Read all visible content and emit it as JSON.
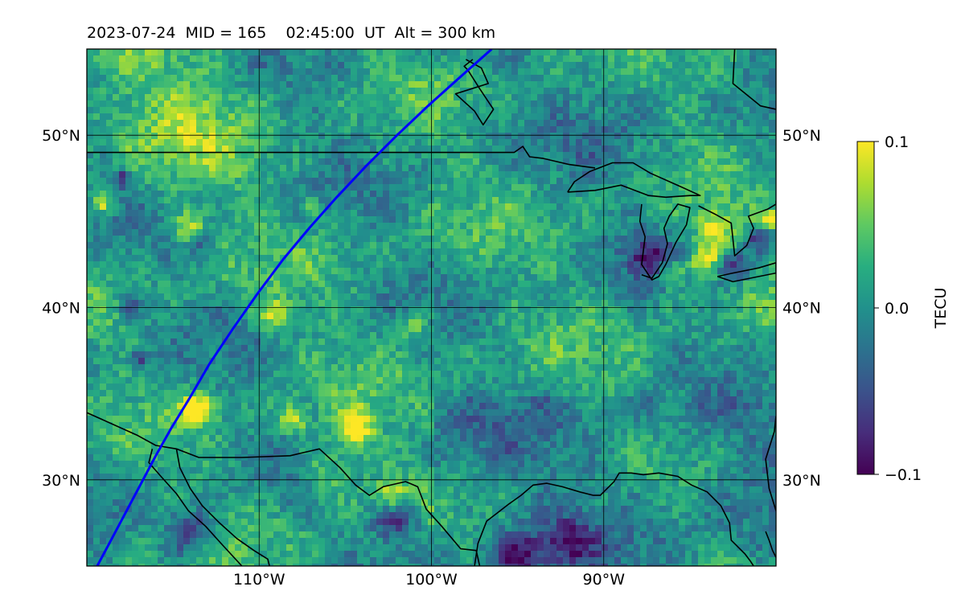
{
  "title": "2023-07-24  MID = 165    02:45:00  UT  Alt = 300 km",
  "chart_data": {
    "type": "heatmap",
    "title": "2023-07-24  MID = 165    02:45:00  UT  Alt = 300 km",
    "projection": "lat-lon",
    "lon_range": [
      -120,
      -80
    ],
    "lat_range": [
      25,
      55
    ],
    "lon_ticks": [
      {
        "value": -110,
        "label": "110°W"
      },
      {
        "value": -100,
        "label": "100°W"
      },
      {
        "value": -90,
        "label": "90°W"
      }
    ],
    "lat_ticks": [
      {
        "value": 50,
        "label": "50°N"
      },
      {
        "value": 40,
        "label": "40°N"
      },
      {
        "value": 30,
        "label": "30°N"
      }
    ],
    "grid": true,
    "colormap": "viridis",
    "colorbar": {
      "label": "TECU",
      "vmin": -0.1,
      "vmax": 0.1,
      "ticks": [
        {
          "value": 0.1,
          "label": "0.1"
        },
        {
          "value": 0.0,
          "label": "0.0"
        },
        {
          "value": -0.1,
          "label": "−0.1"
        }
      ]
    },
    "satellite_track": {
      "color": "#0000ff",
      "lon": [
        -119.4,
        -118.6,
        -117.8,
        -116.9,
        -116.0,
        -115.1,
        -114.0,
        -112.9,
        -111.5,
        -110.1,
        -108.6,
        -107.1,
        -105.5,
        -103.8,
        -102.0,
        -100.2,
        -98.3,
        -96.5
      ],
      "lat": [
        25.0,
        26.5,
        28.0,
        29.7,
        31.4,
        33.0,
        34.8,
        36.7,
        38.8,
        40.8,
        42.8,
        44.6,
        46.4,
        48.2,
        50.0,
        51.7,
        53.4,
        55.0
      ]
    },
    "coastlines": [
      {
        "name": "us-canada-border",
        "lon": [
          -120,
          -95.2,
          -94.7,
          -94.3,
          -93.5,
          -92,
          -90.5
        ],
        "lat": [
          49.0,
          49.0,
          49.35,
          48.75,
          48.65,
          48.3,
          48.1
        ]
      },
      {
        "name": "mexico-us-coast",
        "lon": [
          -120,
          -117.1,
          -116,
          -114.8,
          -113.5,
          -111.0,
          -108.2,
          -106.5,
          -105.3,
          -104.4,
          -103.6,
          -102.8,
          -101.5,
          -100.8,
          -100.3,
          -99.4,
          -98.3,
          -97.4,
          -97.2
        ],
        "lat": [
          33.9,
          32.6,
          32.0,
          31.8,
          31.3,
          31.3,
          31.4,
          31.8,
          30.7,
          29.7,
          29.1,
          29.6,
          29.9,
          29.6,
          28.3,
          27.3,
          26.0,
          25.9,
          25.0
        ]
      },
      {
        "name": "gulf-coast",
        "lon": [
          -97.5,
          -97.3,
          -96.8,
          -95.5,
          -94.8,
          -94.1,
          -93.3,
          -92.4,
          -91.4,
          -90.6,
          -90.2,
          -89.4,
          -89.1,
          -88.4,
          -87.7,
          -86.8,
          -85.7,
          -84.9,
          -84.0,
          -83.2,
          -82.7,
          -82.6,
          -81.8,
          -81.5,
          -81.3
        ],
        "lat": [
          25.0,
          26.3,
          27.6,
          28.6,
          29.1,
          29.7,
          29.8,
          29.6,
          29.3,
          29.1,
          29.1,
          29.9,
          30.4,
          30.4,
          30.3,
          30.4,
          30.2,
          29.7,
          29.3,
          28.5,
          27.5,
          26.5,
          25.7,
          25.3,
          25.0
        ]
      },
      {
        "name": "baja-east",
        "lon": [
          -114.8,
          -114.6,
          -114.0,
          -113.3,
          -112.3,
          -111.3,
          -110.3,
          -109.5,
          -109.4
        ],
        "lat": [
          31.8,
          30.7,
          29.5,
          28.5,
          27.5,
          26.6,
          25.9,
          25.4,
          25.0
        ]
      },
      {
        "name": "baja-west",
        "lon": [
          -116.2,
          -116.4,
          -115.7,
          -114.8,
          -114.1,
          -113.1,
          -112.2,
          -111.0
        ],
        "lat": [
          31.8,
          31.0,
          30.2,
          29.2,
          28.2,
          27.3,
          26.3,
          25.0
        ]
      },
      {
        "name": "hudson-bay",
        "lon": [
          -82.4,
          -82.5,
          -80.9,
          -80.0
        ],
        "lat": [
          55.0,
          53.0,
          51.7,
          51.5
        ]
      },
      {
        "name": "lake-winnipeg",
        "lon": [
          -98.0,
          -97.1,
          -96.7,
          -98.6,
          -97.5,
          -97.0,
          -96.4,
          -97.2,
          -97.9,
          -98.1,
          -97.6
        ],
        "lat": [
          54.4,
          53.9,
          53.0,
          52.4,
          51.4,
          50.6,
          51.5,
          52.7,
          53.8,
          54.0,
          54.4
        ]
      },
      {
        "name": "lake-superior",
        "lon": [
          -92.1,
          -90.5,
          -89.0,
          -87.4,
          -86.4,
          -85.0,
          -84.4,
          -85.5,
          -87.3,
          -88.3,
          -89.5,
          -90.8,
          -91.7,
          -92.1
        ],
        "lat": [
          46.7,
          46.8,
          47.1,
          46.5,
          46.4,
          46.5,
          46.5,
          47.0,
          47.8,
          48.4,
          48.4,
          47.9,
          47.3,
          46.7
        ]
      },
      {
        "name": "lake-michigan",
        "lon": [
          -87.8,
          -87.9,
          -87.6,
          -87.8,
          -87.2,
          -86.8,
          -86.4,
          -85.8,
          -85.2,
          -85.0,
          -85.7,
          -86.2,
          -86.5,
          -86.3,
          -86.6,
          -87.2,
          -87.8
        ],
        "lat": [
          46.0,
          45.0,
          44.1,
          42.5,
          41.6,
          41.8,
          42.5,
          43.8,
          44.8,
          45.8,
          46.0,
          45.3,
          44.6,
          43.7,
          42.6,
          41.7,
          41.9
        ]
      },
      {
        "name": "lake-huron",
        "lon": [
          -84.5,
          -83.5,
          -82.6,
          -82.4,
          -81.7,
          -81.3,
          -81.6,
          -80.5,
          -80.0,
          -80.0
        ],
        "lat": [
          45.9,
          45.4,
          44.9,
          43.0,
          43.6,
          44.6,
          45.3,
          45.7,
          46.0,
          46.2
        ]
      },
      {
        "name": "lake-erie",
        "lon": [
          -83.4,
          -82.5,
          -81.0,
          -80.0,
          -80.0,
          -81.0,
          -82.5,
          -83.4
        ],
        "lat": [
          41.8,
          41.5,
          41.8,
          42.0,
          42.6,
          42.3,
          42.0,
          41.8
        ]
      },
      {
        "name": "atlantic-east",
        "lon": [
          -80.0,
          -80.1,
          -80.6,
          -80.4,
          -80.0
        ],
        "lat": [
          33.7,
          32.8,
          31.2,
          29.5,
          28.2
        ]
      },
      {
        "name": "florida-fragment",
        "lon": [
          -80.6,
          -80.4,
          -80.2,
          -80.0
        ],
        "lat": [
          27.0,
          26.5,
          25.9,
          25.5
        ]
      }
    ]
  }
}
